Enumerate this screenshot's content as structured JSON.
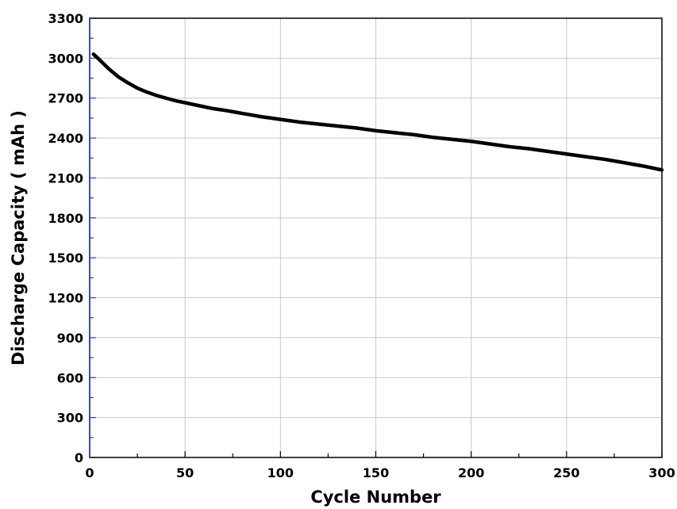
{
  "chart_data": {
    "type": "line",
    "title": "",
    "xlabel": "Cycle Number",
    "ylabel": "Discharge Capacity ( mAh )",
    "xlim": [
      0,
      300
    ],
    "ylim": [
      0,
      3300
    ],
    "xticks": [
      0,
      50,
      100,
      150,
      200,
      250,
      300
    ],
    "yticks": [
      0,
      300,
      600,
      900,
      1200,
      1500,
      1800,
      2100,
      2400,
      2700,
      3000,
      3300
    ],
    "grid": true,
    "legend": "none",
    "series": [
      {
        "x": [
          2,
          5,
          10,
          15,
          20,
          25,
          30,
          35,
          40,
          45,
          50,
          55,
          60,
          65,
          70,
          75,
          80,
          85,
          90,
          95,
          100,
          110,
          120,
          130,
          140,
          150,
          160,
          170,
          180,
          190,
          200,
          210,
          220,
          230,
          240,
          250,
          260,
          270,
          280,
          290,
          300
        ],
        "y": [
          3030,
          2990,
          2920,
          2860,
          2815,
          2775,
          2745,
          2720,
          2700,
          2680,
          2665,
          2650,
          2635,
          2620,
          2610,
          2598,
          2585,
          2573,
          2560,
          2550,
          2540,
          2520,
          2505,
          2490,
          2475,
          2455,
          2440,
          2425,
          2405,
          2390,
          2375,
          2355,
          2335,
          2320,
          2300,
          2280,
          2260,
          2240,
          2215,
          2190,
          2160
        ],
        "color": "#000000"
      }
    ],
    "colors": {
      "line": "#000000",
      "grid": "#c8c8c8",
      "left_axis": "#1f3fd8",
      "frame": "#000000"
    }
  }
}
